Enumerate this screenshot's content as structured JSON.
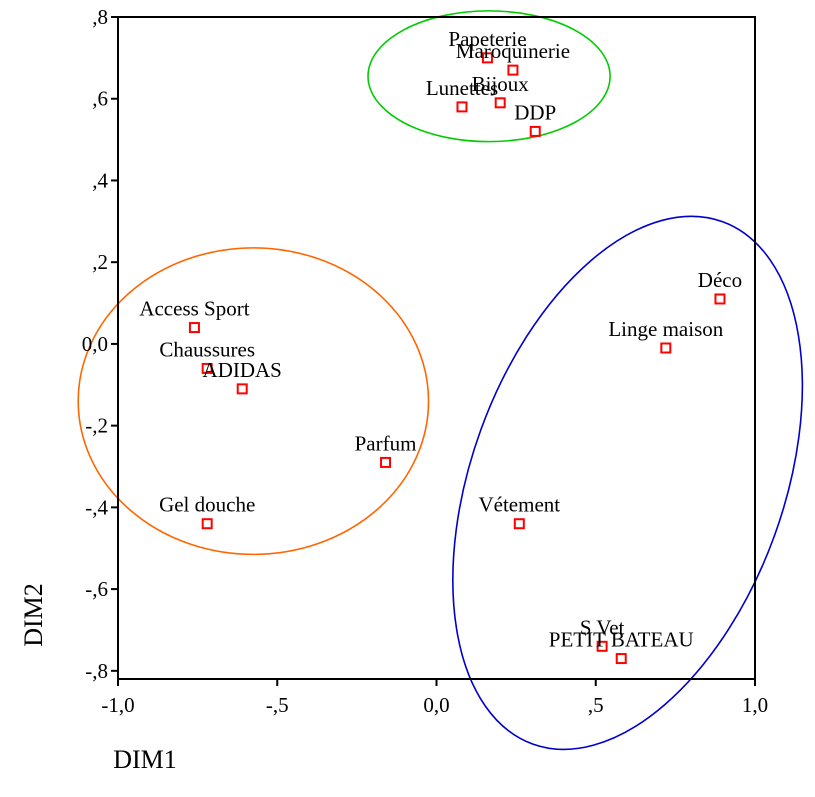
{
  "chart_data": {
    "type": "scatter",
    "title": "",
    "xlabel": "DIM1",
    "ylabel": "DIM2",
    "xlim": [
      -1.0,
      1.0
    ],
    "ylim": [
      -0.82,
      0.8
    ],
    "x_ticks": [
      {
        "value": -1.0,
        "label": "-1,0"
      },
      {
        "value": -0.5,
        "label": "-,5"
      },
      {
        "value": 0.0,
        "label": "0,0"
      },
      {
        "value": 0.5,
        "label": ",5"
      },
      {
        "value": 1.0,
        "label": "1,0"
      }
    ],
    "y_ticks": [
      {
        "value": 0.8,
        "label": ",8"
      },
      {
        "value": 0.6,
        "label": ",6"
      },
      {
        "value": 0.4,
        "label": ",4"
      },
      {
        "value": 0.2,
        "label": ",2"
      },
      {
        "value": 0.0,
        "label": "0,0"
      },
      {
        "value": -0.2,
        "label": "-,2"
      },
      {
        "value": -0.4,
        "label": "-,4"
      },
      {
        "value": -0.6,
        "label": "-,6"
      },
      {
        "value": -0.8,
        "label": "-,8"
      }
    ],
    "grid": false,
    "marker_color": "#ff0000",
    "points": [
      {
        "label": "Papeterie",
        "x": 0.16,
        "y": 0.7
      },
      {
        "label": "Maroquinerie",
        "x": 0.24,
        "y": 0.67
      },
      {
        "label": "Bijoux",
        "x": 0.2,
        "y": 0.59
      },
      {
        "label": "Lunettes",
        "x": 0.08,
        "y": 0.58
      },
      {
        "label": "DDP",
        "x": 0.31,
        "y": 0.52
      },
      {
        "label": "Déco",
        "x": 0.89,
        "y": 0.11
      },
      {
        "label": "Linge maison",
        "x": 0.72,
        "y": -0.01
      },
      {
        "label": "Access Sport",
        "x": -0.76,
        "y": 0.04
      },
      {
        "label": "Chaussures",
        "x": -0.72,
        "y": -0.06
      },
      {
        "label": "ADIDAS",
        "x": -0.61,
        "y": -0.11
      },
      {
        "label": "Parfum",
        "x": -0.16,
        "y": -0.29
      },
      {
        "label": "Gel douche",
        "x": -0.72,
        "y": -0.44
      },
      {
        "label": "Vétement",
        "x": 0.26,
        "y": -0.44
      },
      {
        "label": "S Vet",
        "x": 0.52,
        "y": -0.74
      },
      {
        "label": "PETIT BATEAU",
        "x": 0.58,
        "y": -0.77
      }
    ],
    "groups": [
      {
        "color": "#00cc00",
        "cx": 0.165,
        "cy": 0.655,
        "rx": 0.38,
        "ry": 0.16,
        "rotation": 0
      },
      {
        "color": "#ff6600",
        "cx": -0.575,
        "cy": -0.14,
        "rx": 0.55,
        "ry": 0.375,
        "rotation": 0
      },
      {
        "color": "#0000cc",
        "cx": 0.6,
        "cy": -0.34,
        "rx": 0.49,
        "ry": 0.68,
        "rotation": 20
      }
    ]
  }
}
